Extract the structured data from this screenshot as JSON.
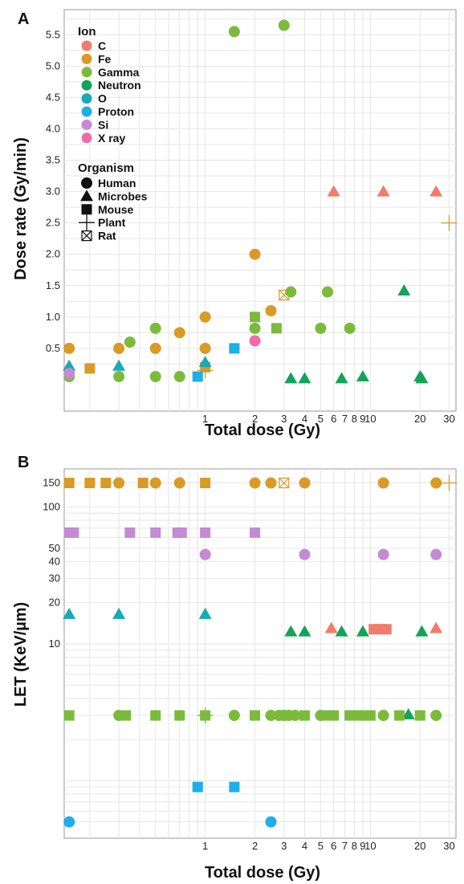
{
  "colors": {
    "C": "#f37b6b",
    "Fe": "#d99a26",
    "Gamma": "#7cba3c",
    "Neutron": "#14a35a",
    "O": "#18aab7",
    "Proton": "#1eaee8",
    "Si": "#c48bd2",
    "X ray": "#f06aa9"
  },
  "chart_data": [
    {
      "panel": "A",
      "type": "scatter",
      "xlabel": "Total dose (Gy)",
      "ylabel": "Dose rate (Gy/min)",
      "x_scale": "log",
      "xlim": [
        0.14,
        33
      ],
      "ylim": [
        -0.5,
        5.9
      ],
      "x_tick_labels": [
        "1",
        "2",
        "3",
        "4",
        "5",
        "6",
        "7",
        "8",
        "9",
        "10",
        "20",
        "30"
      ],
      "y_tick_labels": [
        "0.5",
        "1.0",
        "1.5",
        "2.0",
        "2.5",
        "3.0",
        "3.5",
        "4.0",
        "4.5",
        "5.0",
        "5.5"
      ],
      "legend": {
        "placement": "top-left",
        "color_title": "Ion",
        "color_items": [
          "C",
          "Fe",
          "Gamma",
          "Neutron",
          "O",
          "Proton",
          "Si",
          "X ray"
        ],
        "shape_title": "Organism",
        "shape_items": [
          {
            "label": "Human",
            "shape": "circle"
          },
          {
            "label": "Microbes",
            "shape": "triangle"
          },
          {
            "label": "Mouse",
            "shape": "square"
          },
          {
            "label": "Plant",
            "shape": "plus"
          },
          {
            "label": "Rat",
            "shape": "boxx"
          }
        ]
      },
      "points": [
        {
          "x": 0.15,
          "y": 0.5,
          "ion": "Fe",
          "shape": "circle"
        },
        {
          "x": 0.3,
          "y": 0.5,
          "ion": "Fe",
          "shape": "circle"
        },
        {
          "x": 0.5,
          "y": 0.5,
          "ion": "Fe",
          "shape": "circle"
        },
        {
          "x": 1.0,
          "y": 0.5,
          "ion": "Fe",
          "shape": "circle"
        },
        {
          "x": 0.7,
          "y": 0.75,
          "ion": "Fe",
          "shape": "circle"
        },
        {
          "x": 1.0,
          "y": 1.0,
          "ion": "Fe",
          "shape": "circle"
        },
        {
          "x": 2.0,
          "y": 2.0,
          "ion": "Fe",
          "shape": "circle"
        },
        {
          "x": 2.5,
          "y": 1.1,
          "ion": "Fe",
          "shape": "circle"
        },
        {
          "x": 0.2,
          "y": 0.18,
          "ion": "Fe",
          "shape": "square"
        },
        {
          "x": 1.0,
          "y": 0.2,
          "ion": "Fe",
          "shape": "square"
        },
        {
          "x": 1.0,
          "y": 0.15,
          "ion": "Fe",
          "shape": "plus"
        },
        {
          "x": 30,
          "y": 2.5,
          "ion": "Fe",
          "shape": "plus"
        },
        {
          "x": 3.0,
          "y": 1.35,
          "ion": "Fe",
          "shape": "boxx"
        },
        {
          "x": 1.5,
          "y": 5.55,
          "ion": "Gamma",
          "shape": "circle"
        },
        {
          "x": 3.0,
          "y": 5.65,
          "ion": "Gamma",
          "shape": "circle"
        },
        {
          "x": 0.35,
          "y": 0.6,
          "ion": "Gamma",
          "shape": "circle"
        },
        {
          "x": 0.5,
          "y": 0.82,
          "ion": "Gamma",
          "shape": "circle"
        },
        {
          "x": 0.15,
          "y": 0.05,
          "ion": "Gamma",
          "shape": "circle"
        },
        {
          "x": 0.3,
          "y": 0.05,
          "ion": "Gamma",
          "shape": "circle"
        },
        {
          "x": 0.5,
          "y": 0.05,
          "ion": "Gamma",
          "shape": "circle"
        },
        {
          "x": 0.7,
          "y": 0.05,
          "ion": "Gamma",
          "shape": "circle"
        },
        {
          "x": 2.0,
          "y": 0.82,
          "ion": "Gamma",
          "shape": "circle"
        },
        {
          "x": 3.3,
          "y": 1.4,
          "ion": "Gamma",
          "shape": "circle"
        },
        {
          "x": 5.5,
          "y": 1.4,
          "ion": "Gamma",
          "shape": "circle"
        },
        {
          "x": 5.0,
          "y": 0.82,
          "ion": "Gamma",
          "shape": "circle"
        },
        {
          "x": 7.5,
          "y": 0.82,
          "ion": "Gamma",
          "shape": "circle"
        },
        {
          "x": 2.0,
          "y": 1.0,
          "ion": "Gamma",
          "shape": "square"
        },
        {
          "x": 2.7,
          "y": 0.82,
          "ion": "Gamma",
          "shape": "square"
        },
        {
          "x": 3.3,
          "y": 0.02,
          "ion": "Neutron",
          "shape": "triangle"
        },
        {
          "x": 4.0,
          "y": 0.02,
          "ion": "Neutron",
          "shape": "triangle"
        },
        {
          "x": 6.7,
          "y": 0.02,
          "ion": "Neutron",
          "shape": "triangle"
        },
        {
          "x": 9.0,
          "y": 0.05,
          "ion": "Neutron",
          "shape": "triangle"
        },
        {
          "x": 16,
          "y": 1.42,
          "ion": "Neutron",
          "shape": "triangle"
        },
        {
          "x": 20,
          "y": 0.05,
          "ion": "Neutron",
          "shape": "triangle"
        },
        {
          "x": 20.5,
          "y": 0.02,
          "ion": "Neutron",
          "shape": "triangle"
        },
        {
          "x": 6.0,
          "y": 3.0,
          "ion": "C",
          "shape": "triangle"
        },
        {
          "x": 12,
          "y": 3.0,
          "ion": "C",
          "shape": "triangle"
        },
        {
          "x": 25,
          "y": 3.0,
          "ion": "C",
          "shape": "triangle"
        },
        {
          "x": 0.15,
          "y": 0.22,
          "ion": "O",
          "shape": "triangle"
        },
        {
          "x": 0.3,
          "y": 0.22,
          "ion": "O",
          "shape": "triangle"
        },
        {
          "x": 1.0,
          "y": 0.28,
          "ion": "O",
          "shape": "triangle"
        },
        {
          "x": 0.9,
          "y": 0.05,
          "ion": "Proton",
          "shape": "square"
        },
        {
          "x": 1.5,
          "y": 0.5,
          "ion": "Proton",
          "shape": "square"
        },
        {
          "x": 0.15,
          "y": 0.1,
          "ion": "Si",
          "shape": "circle"
        },
        {
          "x": 2.0,
          "y": 0.62,
          "ion": "X ray",
          "shape": "circle"
        }
      ]
    },
    {
      "panel": "B",
      "type": "scatter",
      "xlabel": "Total dose (Gy)",
      "ylabel": "LET (KeV/µm)",
      "x_scale": "log",
      "y_scale": "log",
      "xlim": [
        0.14,
        33
      ],
      "x_tick_labels": [
        "1",
        "2",
        "3",
        "4",
        "5",
        "6",
        "7",
        "8",
        "9",
        "10",
        "20",
        "30"
      ],
      "y_tick_labels": [
        "10",
        "20",
        "30",
        "40",
        "50",
        "100",
        "150"
      ],
      "points": [
        {
          "x": 0.15,
          "y": 150,
          "ion": "Fe",
          "shape": "square"
        },
        {
          "x": 0.2,
          "y": 150,
          "ion": "Fe",
          "shape": "square"
        },
        {
          "x": 0.25,
          "y": 150,
          "ion": "Fe",
          "shape": "square"
        },
        {
          "x": 0.3,
          "y": 150,
          "ion": "Fe",
          "shape": "circle"
        },
        {
          "x": 0.42,
          "y": 150,
          "ion": "Fe",
          "shape": "square"
        },
        {
          "x": 0.5,
          "y": 150,
          "ion": "Fe",
          "shape": "circle"
        },
        {
          "x": 0.7,
          "y": 150,
          "ion": "Fe",
          "shape": "circle"
        },
        {
          "x": 1.0,
          "y": 150,
          "ion": "Fe",
          "shape": "square"
        },
        {
          "x": 2.0,
          "y": 150,
          "ion": "Fe",
          "shape": "circle"
        },
        {
          "x": 2.5,
          "y": 150,
          "ion": "Fe",
          "shape": "circle"
        },
        {
          "x": 3.0,
          "y": 150,
          "ion": "Fe",
          "shape": "boxx"
        },
        {
          "x": 4.0,
          "y": 150,
          "ion": "Fe",
          "shape": "circle"
        },
        {
          "x": 12,
          "y": 150,
          "ion": "Fe",
          "shape": "circle"
        },
        {
          "x": 25,
          "y": 150,
          "ion": "Fe",
          "shape": "circle"
        },
        {
          "x": 30,
          "y": 150,
          "ion": "Fe",
          "shape": "plus"
        },
        {
          "x": 0.15,
          "y": 65,
          "ion": "Si",
          "shape": "square"
        },
        {
          "x": 0.16,
          "y": 65,
          "ion": "Si",
          "shape": "square"
        },
        {
          "x": 0.35,
          "y": 65,
          "ion": "Si",
          "shape": "square"
        },
        {
          "x": 0.5,
          "y": 65,
          "ion": "Si",
          "shape": "square"
        },
        {
          "x": 0.68,
          "y": 65,
          "ion": "Si",
          "shape": "square"
        },
        {
          "x": 0.72,
          "y": 65,
          "ion": "Si",
          "shape": "square"
        },
        {
          "x": 1.0,
          "y": 65,
          "ion": "Si",
          "shape": "square"
        },
        {
          "x": 2.0,
          "y": 65,
          "ion": "Si",
          "shape": "square"
        },
        {
          "x": 1.0,
          "y": 45,
          "ion": "Si",
          "shape": "circle"
        },
        {
          "x": 4.0,
          "y": 45,
          "ion": "Si",
          "shape": "circle"
        },
        {
          "x": 12,
          "y": 45,
          "ion": "Si",
          "shape": "circle"
        },
        {
          "x": 25,
          "y": 45,
          "ion": "Si",
          "shape": "circle"
        },
        {
          "x": 0.15,
          "y": 16.5,
          "ion": "O",
          "shape": "triangle"
        },
        {
          "x": 0.3,
          "y": 16.5,
          "ion": "O",
          "shape": "triangle"
        },
        {
          "x": 1.0,
          "y": 16.5,
          "ion": "O",
          "shape": "triangle"
        },
        {
          "x": 5.8,
          "y": 13,
          "ion": "C",
          "shape": "triangle"
        },
        {
          "x": 10.5,
          "y": 12.8,
          "ion": "C",
          "shape": "square"
        },
        {
          "x": 11.5,
          "y": 12.8,
          "ion": "C",
          "shape": "square"
        },
        {
          "x": 12.5,
          "y": 12.8,
          "ion": "C",
          "shape": "square"
        },
        {
          "x": 25,
          "y": 13,
          "ion": "C",
          "shape": "triangle"
        },
        {
          "x": 3.3,
          "y": 12.3,
          "ion": "Neutron",
          "shape": "triangle"
        },
        {
          "x": 4.0,
          "y": 12.3,
          "ion": "Neutron",
          "shape": "triangle"
        },
        {
          "x": 6.7,
          "y": 12.3,
          "ion": "Neutron",
          "shape": "triangle"
        },
        {
          "x": 9.0,
          "y": 12.3,
          "ion": "Neutron",
          "shape": "triangle"
        },
        {
          "x": 20.5,
          "y": 12.3,
          "ion": "Neutron",
          "shape": "triangle"
        },
        {
          "x": 17,
          "y": 3.05,
          "ion": "Neutron",
          "shape": "triangle"
        },
        {
          "x": 0.15,
          "y": 3.0,
          "ion": "Gamma",
          "shape": "square"
        },
        {
          "x": 0.3,
          "y": 3.0,
          "ion": "Gamma",
          "shape": "circle"
        },
        {
          "x": 0.33,
          "y": 3.0,
          "ion": "Gamma",
          "shape": "square"
        },
        {
          "x": 0.5,
          "y": 3.0,
          "ion": "Gamma",
          "shape": "square"
        },
        {
          "x": 0.7,
          "y": 3.0,
          "ion": "Gamma",
          "shape": "square"
        },
        {
          "x": 1.0,
          "y": 3.0,
          "ion": "Gamma",
          "shape": "square"
        },
        {
          "x": 1.0,
          "y": 3.0,
          "ion": "Gamma",
          "shape": "plus"
        },
        {
          "x": 1.5,
          "y": 3.0,
          "ion": "Gamma",
          "shape": "circle"
        },
        {
          "x": 2.0,
          "y": 3.0,
          "ion": "Gamma",
          "shape": "square"
        },
        {
          "x": 2.5,
          "y": 3.0,
          "ion": "Gamma",
          "shape": "circle"
        },
        {
          "x": 2.8,
          "y": 3.0,
          "ion": "Gamma",
          "shape": "circle"
        },
        {
          "x": 3.0,
          "y": 3.0,
          "ion": "Gamma",
          "shape": "circle"
        },
        {
          "x": 3.2,
          "y": 3.0,
          "ion": "Gamma",
          "shape": "circle"
        },
        {
          "x": 3.5,
          "y": 3.0,
          "ion": "Gamma",
          "shape": "circle"
        },
        {
          "x": 4.0,
          "y": 3.0,
          "ion": "Gamma",
          "shape": "square"
        },
        {
          "x": 5.0,
          "y": 3.0,
          "ion": "Gamma",
          "shape": "circle"
        },
        {
          "x": 5.5,
          "y": 3.0,
          "ion": "Gamma",
          "shape": "square"
        },
        {
          "x": 6.0,
          "y": 3.0,
          "ion": "Gamma",
          "shape": "square"
        },
        {
          "x": 7.5,
          "y": 3.0,
          "ion": "Gamma",
          "shape": "square"
        },
        {
          "x": 8.0,
          "y": 3.0,
          "ion": "Gamma",
          "shape": "square"
        },
        {
          "x": 9.0,
          "y": 3.0,
          "ion": "Gamma",
          "shape": "square"
        },
        {
          "x": 9.5,
          "y": 3.0,
          "ion": "Gamma",
          "shape": "square"
        },
        {
          "x": 10,
          "y": 3.0,
          "ion": "Gamma",
          "shape": "square"
        },
        {
          "x": 12,
          "y": 3.0,
          "ion": "Gamma",
          "shape": "circle"
        },
        {
          "x": 15,
          "y": 3.0,
          "ion": "Gamma",
          "shape": "square"
        },
        {
          "x": 20,
          "y": 3.0,
          "ion": "Gamma",
          "shape": "square"
        },
        {
          "x": 25,
          "y": 3.0,
          "ion": "Gamma",
          "shape": "circle"
        },
        {
          "x": 0.9,
          "y": 0.9,
          "ion": "Proton",
          "shape": "square"
        },
        {
          "x": 1.5,
          "y": 0.9,
          "ion": "Proton",
          "shape": "square"
        },
        {
          "x": 0.15,
          "y": 0.5,
          "ion": "Proton",
          "shape": "circle"
        },
        {
          "x": 2.5,
          "y": 0.5,
          "ion": "Proton",
          "shape": "circle"
        }
      ]
    }
  ],
  "panel_labels": [
    "A",
    "B"
  ]
}
